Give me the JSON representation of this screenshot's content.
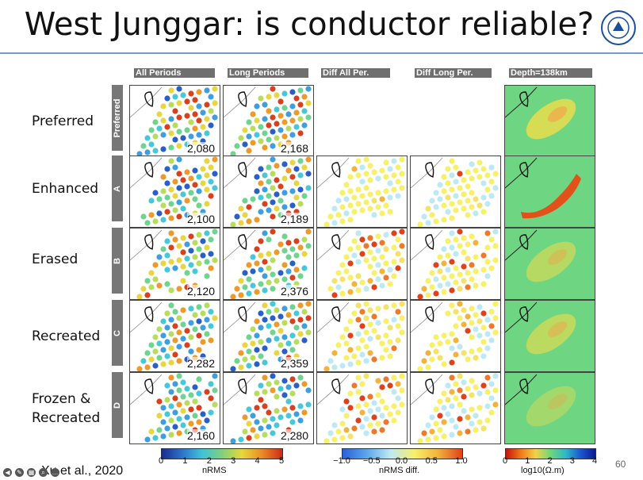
{
  "title": "West Junggar: is conductor reliable?",
  "logo": {
    "icon": "university-seal-icon",
    "color": "#1a4e9c"
  },
  "column_headers": [
    "All Periods",
    "Long Periods",
    "Diff All Per.",
    "Diff Long Per.",
    "Depth=138km"
  ],
  "rows": [
    {
      "label": "Preferred",
      "tab": "Preferred",
      "values": [
        "2,080",
        "2,168"
      ]
    },
    {
      "label": "Enhanced",
      "tab": "A",
      "values": [
        "2,100",
        "2,189"
      ]
    },
    {
      "label": "Erased",
      "tab": "B",
      "values": [
        "2,120",
        "2,376"
      ]
    },
    {
      "label": "Recreated",
      "tab": "C",
      "values": [
        "2,282",
        "2,359"
      ]
    },
    {
      "label": "Frozen &\nRecreated",
      "tab": "D",
      "values": [
        "2,160",
        "2,280"
      ]
    }
  ],
  "colorbars": [
    {
      "ticks": [
        "0",
        "1",
        "2",
        "3",
        "4",
        "5"
      ],
      "label": "nRMS"
    },
    {
      "ticks": [
        "−1.0",
        "−0.5",
        "0.0",
        "0.5",
        "1.0"
      ],
      "label": "nRMS diff."
    },
    {
      "ticks": [
        "0",
        "1",
        "2",
        "3",
        "4"
      ],
      "label": "log10(Ω.m)"
    }
  ],
  "citation": "Xu et al., 2020",
  "page_number": "60",
  "colors": {
    "accent_rule": "#7a9cc4",
    "tab_gray": "#777777"
  }
}
